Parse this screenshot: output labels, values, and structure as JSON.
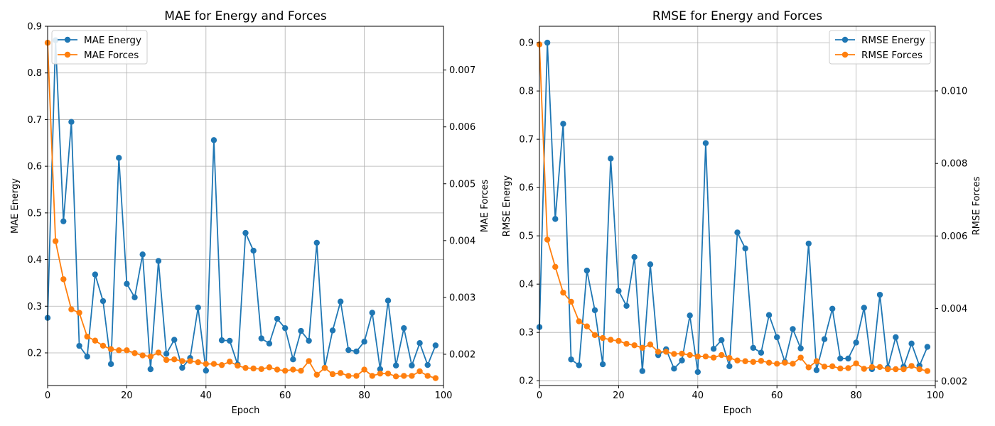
{
  "chart_data": [
    {
      "type": "line",
      "title": "MAE for Energy and Forces",
      "xlabel": "Epoch",
      "ylabel_left": "MAE Energy",
      "ylabel_right": "MAE Forces",
      "xlim": [
        0,
        100
      ],
      "ylim_left": [
        0.13,
        0.9
      ],
      "ylim_right": [
        0.00145,
        0.00777
      ],
      "xticks": [
        0,
        20,
        40,
        60,
        80,
        100
      ],
      "yticks_left": [
        0.2,
        0.3,
        0.4,
        0.5,
        0.6,
        0.7,
        0.8,
        0.9
      ],
      "yticks_right": [
        0.002,
        0.003,
        0.004,
        0.005,
        0.006,
        0.007
      ],
      "ytick_labels_left": [
        "0.2",
        "0.3",
        "0.4",
        "0.5",
        "0.6",
        "0.7",
        "0.8",
        "0.9"
      ],
      "ytick_labels_right": [
        "0.002",
        "0.003",
        "0.004",
        "0.005",
        "0.006",
        "0.007"
      ],
      "grid": true,
      "legend_position": "upper-left",
      "x": [
        0,
        2,
        4,
        6,
        8,
        10,
        12,
        14,
        16,
        18,
        20,
        22,
        24,
        26,
        28,
        30,
        32,
        34,
        36,
        38,
        40,
        42,
        44,
        46,
        48,
        50,
        52,
        54,
        56,
        58,
        60,
        62,
        64,
        66,
        68,
        70,
        72,
        74,
        76,
        78,
        80,
        82,
        84,
        86,
        88,
        90,
        92,
        94,
        96,
        98
      ],
      "series": [
        {
          "name": "MAE Energy",
          "axis": "left",
          "color": "#1f77b4",
          "values": [
            0.275,
            0.87,
            0.482,
            0.695,
            0.215,
            0.192,
            0.368,
            0.311,
            0.176,
            0.618,
            0.348,
            0.319,
            0.411,
            0.165,
            0.397,
            0.198,
            0.228,
            0.168,
            0.189,
            0.297,
            0.162,
            0.656,
            0.227,
            0.226,
            0.175,
            0.457,
            0.419,
            0.231,
            0.22,
            0.273,
            0.253,
            0.186,
            0.247,
            0.226,
            0.436,
            0.168,
            0.248,
            0.31,
            0.206,
            0.203,
            0.224,
            0.286,
            0.165,
            0.312,
            0.173,
            0.253,
            0.173,
            0.221,
            0.174,
            0.216
          ]
        },
        {
          "name": "MAE Forces",
          "axis": "right",
          "color": "#ff7f0e",
          "values": [
            0.00748,
            0.00399,
            0.00332,
            0.00279,
            0.00273,
            0.00231,
            0.00224,
            0.00215,
            0.00209,
            0.00207,
            0.00207,
            0.00202,
            0.00198,
            0.00196,
            0.00203,
            0.0019,
            0.00191,
            0.00188,
            0.00188,
            0.00186,
            0.00183,
            0.00183,
            0.00181,
            0.00187,
            0.0018,
            0.00176,
            0.00175,
            0.00174,
            0.00177,
            0.00173,
            0.00171,
            0.00173,
            0.00171,
            0.00188,
            0.00164,
            0.00176,
            0.00165,
            0.00167,
            0.00162,
            0.00162,
            0.00173,
            0.00162,
            0.00166,
            0.00166,
            0.00161,
            0.00162,
            0.00162,
            0.0017,
            0.00162,
            0.00158
          ]
        }
      ]
    },
    {
      "type": "line",
      "title": "RMSE for Energy and Forces",
      "xlabel": "Epoch",
      "ylabel_left": "RMSE Energy",
      "ylabel_right": "RMSE Forces",
      "xlim": [
        0,
        100
      ],
      "ylim_left": [
        0.19,
        0.934
      ],
      "ylim_right": [
        0.00188,
        0.01178
      ],
      "xticks": [
        0,
        20,
        40,
        60,
        80,
        100
      ],
      "yticks_left": [
        0.2,
        0.3,
        0.4,
        0.5,
        0.6,
        0.7,
        0.8,
        0.9
      ],
      "yticks_right": [
        0.002,
        0.004,
        0.006,
        0.008,
        0.01
      ],
      "ytick_labels_left": [
        "0.2",
        "0.3",
        "0.4",
        "0.5",
        "0.6",
        "0.7",
        "0.8",
        "0.9"
      ],
      "ytick_labels_right": [
        "0.002",
        "0.004",
        "0.006",
        "0.008",
        "0.010"
      ],
      "grid": true,
      "legend_position": "upper-right",
      "x": [
        0,
        2,
        4,
        6,
        8,
        10,
        12,
        14,
        16,
        18,
        20,
        22,
        24,
        26,
        28,
        30,
        32,
        34,
        36,
        38,
        40,
        42,
        44,
        46,
        48,
        50,
        52,
        54,
        56,
        58,
        60,
        62,
        64,
        66,
        68,
        70,
        72,
        74,
        76,
        78,
        80,
        82,
        84,
        86,
        88,
        90,
        92,
        94,
        96,
        98
      ],
      "series": [
        {
          "name": "RMSE Energy",
          "axis": "left",
          "color": "#1f77b4",
          "values": [
            0.311,
            0.9,
            0.535,
            0.732,
            0.244,
            0.232,
            0.428,
            0.346,
            0.234,
            0.66,
            0.386,
            0.355,
            0.456,
            0.22,
            0.441,
            0.253,
            0.265,
            0.225,
            0.242,
            0.335,
            0.218,
            0.692,
            0.266,
            0.284,
            0.23,
            0.507,
            0.474,
            0.268,
            0.258,
            0.336,
            0.29,
            0.239,
            0.307,
            0.267,
            0.484,
            0.222,
            0.286,
            0.349,
            0.246,
            0.246,
            0.279,
            0.351,
            0.224,
            0.378,
            0.227,
            0.29,
            0.229,
            0.277,
            0.231,
            0.27
          ]
        },
        {
          "name": "RMSE Forces",
          "axis": "right",
          "color": "#ff7f0e",
          "values": [
            0.01128,
            0.0059,
            0.00515,
            0.00444,
            0.00419,
            0.00365,
            0.00351,
            0.00327,
            0.00319,
            0.00314,
            0.00311,
            0.00303,
            0.00299,
            0.00292,
            0.00301,
            0.00281,
            0.00281,
            0.00275,
            0.00276,
            0.00272,
            0.00268,
            0.00268,
            0.00265,
            0.00272,
            0.00264,
            0.00257,
            0.00255,
            0.00253,
            0.00256,
            0.00251,
            0.00248,
            0.00251,
            0.00248,
            0.00265,
            0.00238,
            0.00255,
            0.0024,
            0.00241,
            0.00235,
            0.00236,
            0.00249,
            0.00234,
            0.00239,
            0.00239,
            0.00233,
            0.00233,
            0.00233,
            0.00242,
            0.00233,
            0.00228
          ]
        }
      ]
    }
  ]
}
